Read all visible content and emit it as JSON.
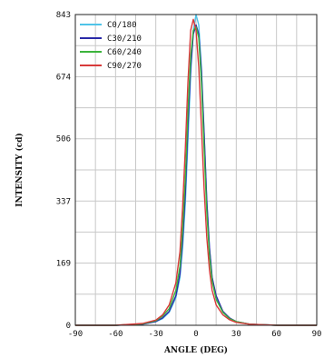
{
  "chart_data": {
    "type": "line",
    "title": "",
    "xlabel": "ANGLE (DEG)",
    "ylabel": "INTENSITY (cd)",
    "xlim": [
      -90,
      90
    ],
    "ylim": [
      0,
      843
    ],
    "x_ticks": [
      -90,
      -60,
      -30,
      0,
      30,
      60,
      90
    ],
    "x_tick_labels": [
      "-90",
      "-60",
      "-30",
      "0",
      "30",
      "60",
      "90"
    ],
    "y_ticks": [
      0,
      169,
      337,
      506,
      674,
      843
    ],
    "y_tick_labels": [
      "0",
      "169",
      "337",
      "506",
      "674",
      "843"
    ],
    "grid": true,
    "legend_position": "top-left",
    "series": [
      {
        "name": "C0/180",
        "color": "#4fc3e8",
        "x": [
          -90,
          -60,
          -40,
          -30,
          -25,
          -20,
          -15,
          -12,
          -10,
          -8,
          -6,
          -4,
          -2,
          0,
          2,
          4,
          6,
          8,
          10,
          12,
          15,
          20,
          25,
          30,
          40,
          60,
          90
        ],
        "y": [
          0,
          0,
          3,
          10,
          18,
          35,
          75,
          130,
          210,
          330,
          500,
          680,
          800,
          843,
          815,
          700,
          520,
          340,
          210,
          130,
          75,
          35,
          18,
          10,
          3,
          0,
          0
        ]
      },
      {
        "name": "C30/210",
        "color": "#2a2aa8",
        "x": [
          -90,
          -60,
          -40,
          -30,
          -25,
          -20,
          -15,
          -12,
          -10,
          -8,
          -6,
          -4,
          -2,
          0,
          2,
          4,
          6,
          8,
          10,
          12,
          15,
          20,
          25,
          30,
          40,
          60,
          90
        ],
        "y": [
          0,
          0,
          3,
          10,
          20,
          38,
          80,
          140,
          230,
          360,
          540,
          700,
          790,
          815,
          790,
          690,
          520,
          340,
          210,
          130,
          80,
          38,
          20,
          10,
          3,
          0,
          0
        ]
      },
      {
        "name": "C60/240",
        "color": "#3cb43c",
        "x": [
          -90,
          -60,
          -40,
          -30,
          -25,
          -20,
          -15,
          -12,
          -10,
          -8,
          -6,
          -4,
          -2,
          0,
          2,
          4,
          6,
          8,
          10,
          12,
          15,
          20,
          25,
          30,
          40,
          60,
          90
        ],
        "y": [
          0,
          0,
          4,
          12,
          25,
          45,
          95,
          160,
          260,
          400,
          580,
          730,
          800,
          810,
          780,
          660,
          480,
          310,
          190,
          120,
          70,
          35,
          18,
          10,
          3,
          0,
          0
        ]
      },
      {
        "name": "C90/270",
        "color": "#d83a3a",
        "x": [
          -90,
          -60,
          -40,
          -30,
          -25,
          -20,
          -15,
          -12,
          -10,
          -8,
          -6,
          -4,
          -2,
          0,
          2,
          4,
          6,
          8,
          10,
          12,
          15,
          20,
          25,
          30,
          40,
          60,
          90
        ],
        "y": [
          0,
          0,
          5,
          14,
          28,
          55,
          115,
          200,
          320,
          480,
          660,
          800,
          830,
          800,
          700,
          540,
          370,
          240,
          150,
          95,
          55,
          28,
          15,
          8,
          3,
          0,
          0
        ]
      }
    ]
  }
}
